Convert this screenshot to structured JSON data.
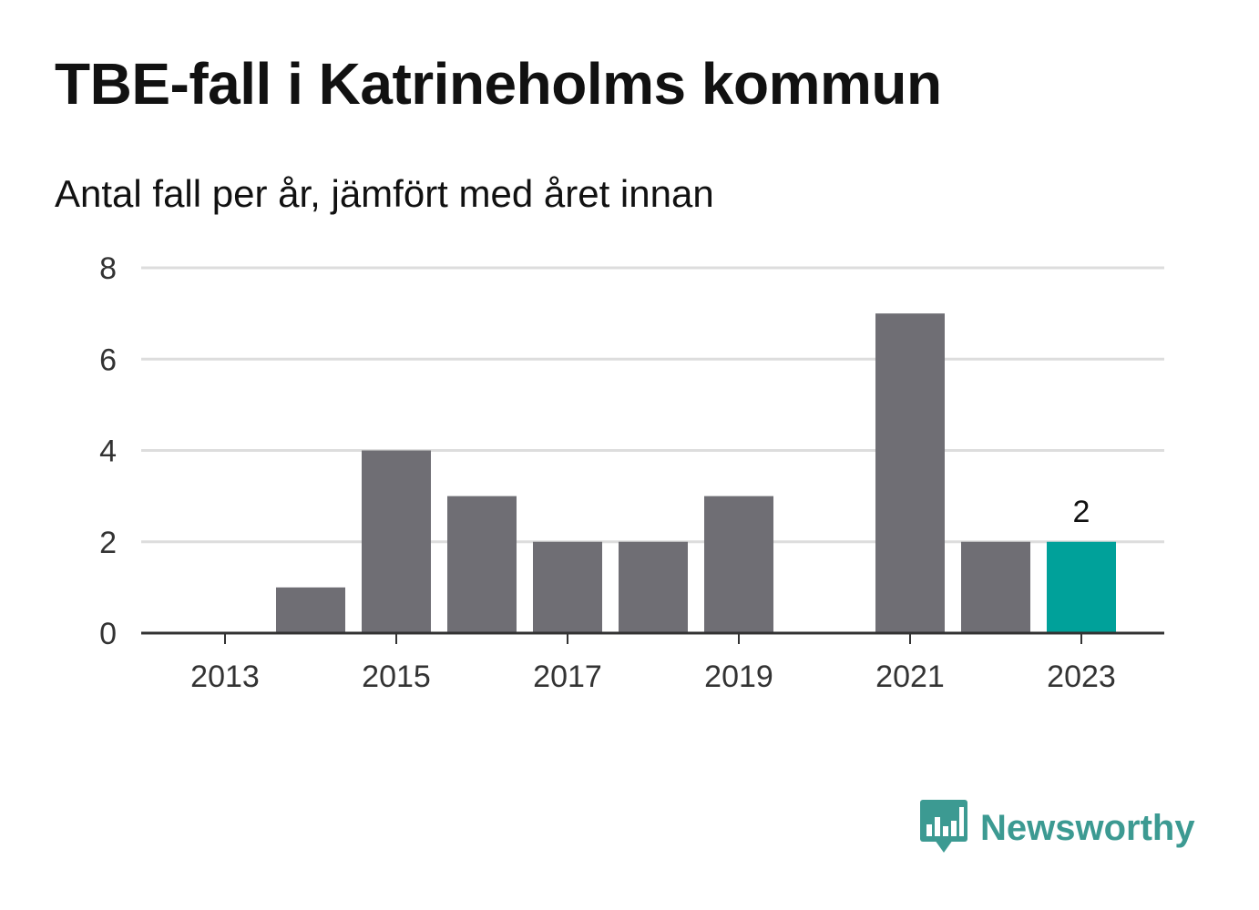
{
  "header": {
    "title": "TBE-fall i Katrineholms kommun",
    "subtitle": "Antal fall per år, jämfört med året innan"
  },
  "brand": {
    "name": "Newsworthy",
    "color": "#3c9a92",
    "icon": "bar-chart-speech-bubble-icon"
  },
  "colors": {
    "bar": "#6f6e74",
    "highlight": "#00a19a",
    "grid": "#dddddd",
    "axis": "#333333"
  },
  "chart_data": {
    "type": "bar",
    "title": "TBE-fall i Katrineholms kommun",
    "subtitle": "Antal fall per år, jämfört med året innan",
    "xlabel": "",
    "ylabel": "",
    "categories": [
      "2013",
      "2014",
      "2015",
      "2016",
      "2017",
      "2018",
      "2019",
      "2020",
      "2021",
      "2022",
      "2023"
    ],
    "values": [
      0,
      1,
      4,
      3,
      2,
      2,
      3,
      0,
      7,
      2,
      2
    ],
    "highlight_category": "2023",
    "x_tick_labels": [
      "2013",
      "2015",
      "2017",
      "2019",
      "2021",
      "2023"
    ],
    "y_ticks": [
      0,
      2,
      4,
      6,
      8
    ],
    "ylim": [
      0,
      8
    ],
    "grid": true,
    "annotations": [
      {
        "category": "2023",
        "text": "2"
      }
    ]
  }
}
